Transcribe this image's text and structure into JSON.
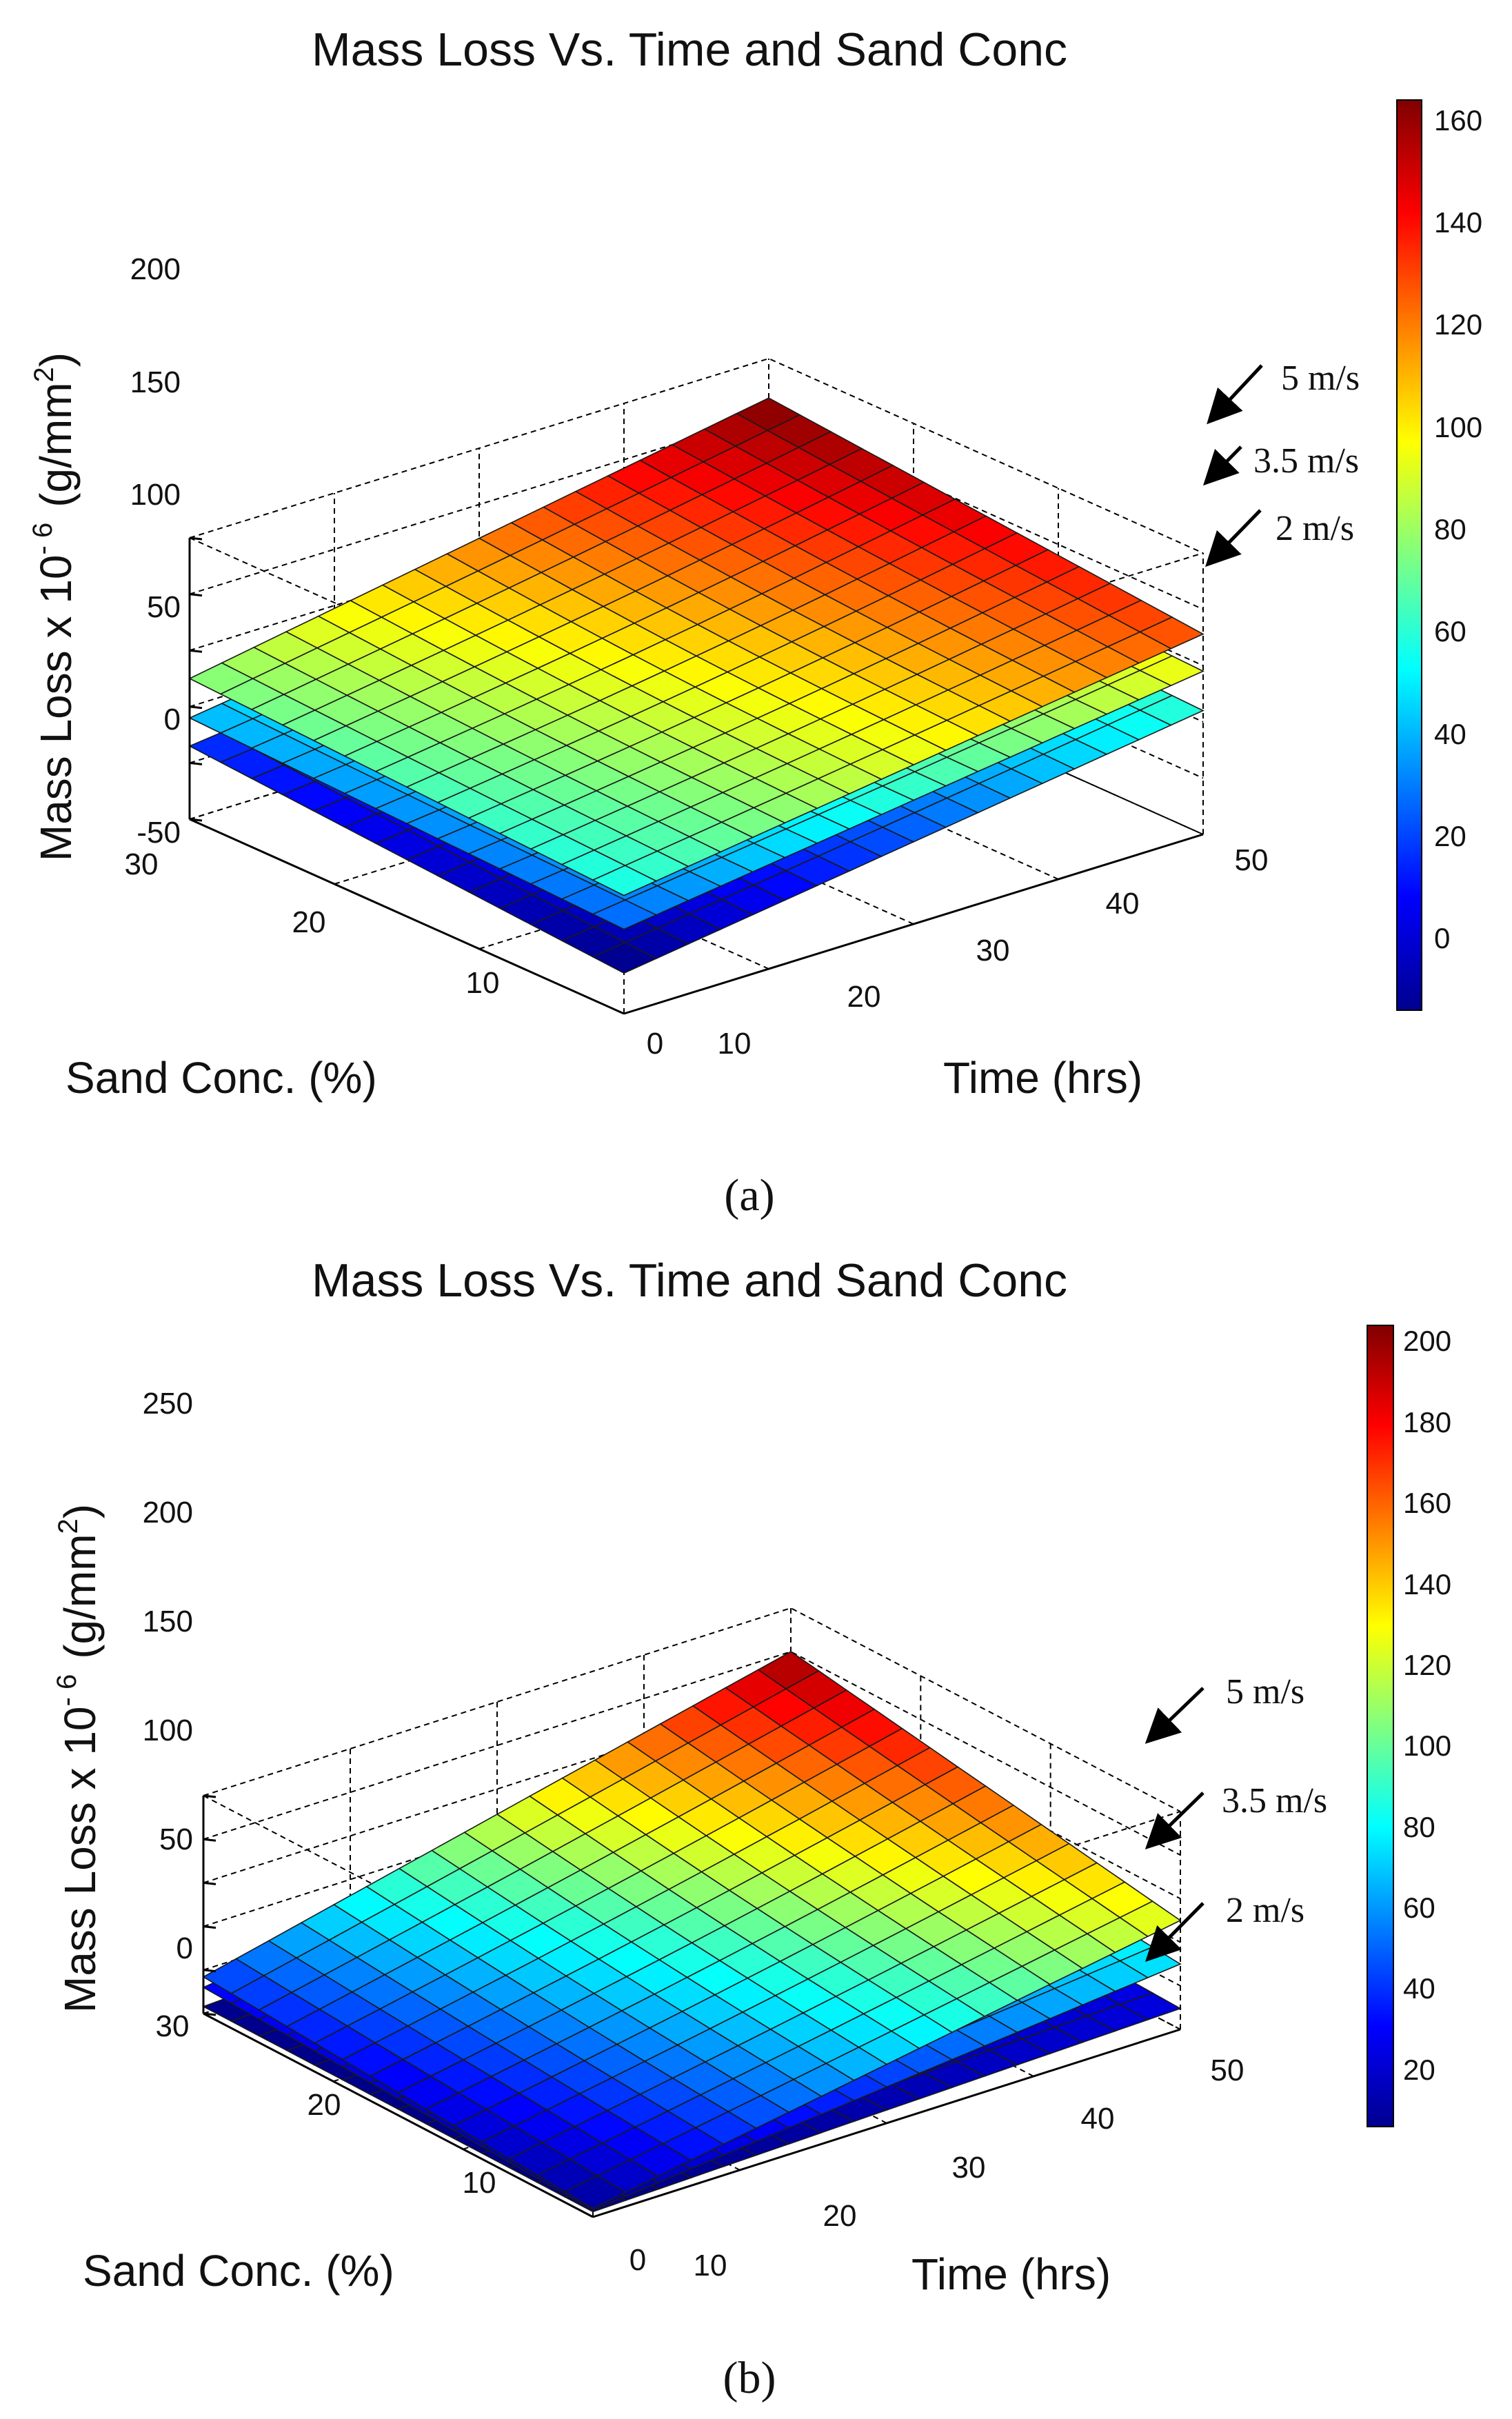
{
  "chart_data": [
    {
      "panel": "a",
      "caption": "(a)",
      "type": "surface3d",
      "title": "Mass Loss Vs. Time and Sand Conc",
      "ylabel": "Mass Loss x 10",
      "ylabel_exp": "- 6",
      "ylabel_unit": "(g/mm",
      "ylabel_unit_sup": "2",
      "ylabel_close": ")",
      "x_label": "Sand Conc. (%)",
      "t_label": "Time (hrs)",
      "x_range": [
        0,
        30
      ],
      "t_range": [
        10,
        50
      ],
      "z_range": [
        -50,
        200
      ],
      "x_ticks": [
        "0",
        "10",
        "20",
        "30"
      ],
      "t_ticks": [
        "10",
        "20",
        "30",
        "40",
        "50"
      ],
      "z_ticks": [
        "-50",
        "0",
        "50",
        "100",
        "150",
        "200"
      ],
      "colorbar": {
        "min": -14,
        "max": 164,
        "ticks": [
          "0",
          "20",
          "40",
          "60",
          "80",
          "100",
          "120",
          "140",
          "160"
        ]
      },
      "surfaces": [
        {
          "name": "5 m/s",
          "label": "5 m/s",
          "z_at_t10_x0": 55,
          "z_at_t10_x30": 75,
          "z_at_t50_x0": 128,
          "z_at_t50_x30": 165
        },
        {
          "name": "3.5 m/s",
          "label": "3.5 m/s",
          "z_at_t10_x0": 25,
          "z_at_t10_x30": 40,
          "z_at_t50_x0": 95,
          "z_at_t50_x30": 112
        },
        {
          "name": "2 m/s",
          "label": "2 m/s",
          "z_at_t10_x0": -14,
          "z_at_t10_x30": 15,
          "z_at_t50_x0": 60,
          "z_at_t50_x30": 75
        }
      ]
    },
    {
      "panel": "b",
      "caption": "(b)",
      "type": "surface3d",
      "title": "Mass Loss Vs. Time and Sand Conc",
      "ylabel": "Mass Loss x 10",
      "ylabel_exp": "- 6",
      "ylabel_unit": "(g/mm",
      "ylabel_unit_sup": "2",
      "ylabel_close": ")",
      "x_label": "Sand Conc. (%)",
      "t_label": "Time (hrs)",
      "x_range": [
        0,
        30
      ],
      "t_range": [
        10,
        50
      ],
      "z_range": [
        0,
        250
      ],
      "x_ticks": [
        "0",
        "10",
        "20",
        "30"
      ],
      "t_ticks": [
        "10",
        "20",
        "30",
        "40",
        "50"
      ],
      "z_ticks": [
        "0",
        "50",
        "100",
        "150",
        "200",
        "250"
      ],
      "colorbar": {
        "min": 6,
        "max": 204,
        "ticks": [
          "20",
          "40",
          "60",
          "80",
          "100",
          "120",
          "140",
          "160",
          "180",
          "200"
        ]
      },
      "surfaces": [
        {
          "name": "5 m/s",
          "label": "5 m/s",
          "z_at_t10_x0": 10,
          "z_at_t10_x30": 42,
          "z_at_t50_x0": 125,
          "z_at_t50_x30": 200
        },
        {
          "name": "3.5 m/s",
          "label": "3.5 m/s",
          "z_at_t10_x0": 8,
          "z_at_t10_x30": 30,
          "z_at_t50_x0": 75,
          "z_at_t50_x30": 115
        },
        {
          "name": "2 m/s",
          "label": "2 m/s",
          "z_at_t10_x0": 6,
          "z_at_t10_x30": 8,
          "z_at_t50_x0": 24,
          "z_at_t50_x30": 40
        }
      ]
    }
  ]
}
